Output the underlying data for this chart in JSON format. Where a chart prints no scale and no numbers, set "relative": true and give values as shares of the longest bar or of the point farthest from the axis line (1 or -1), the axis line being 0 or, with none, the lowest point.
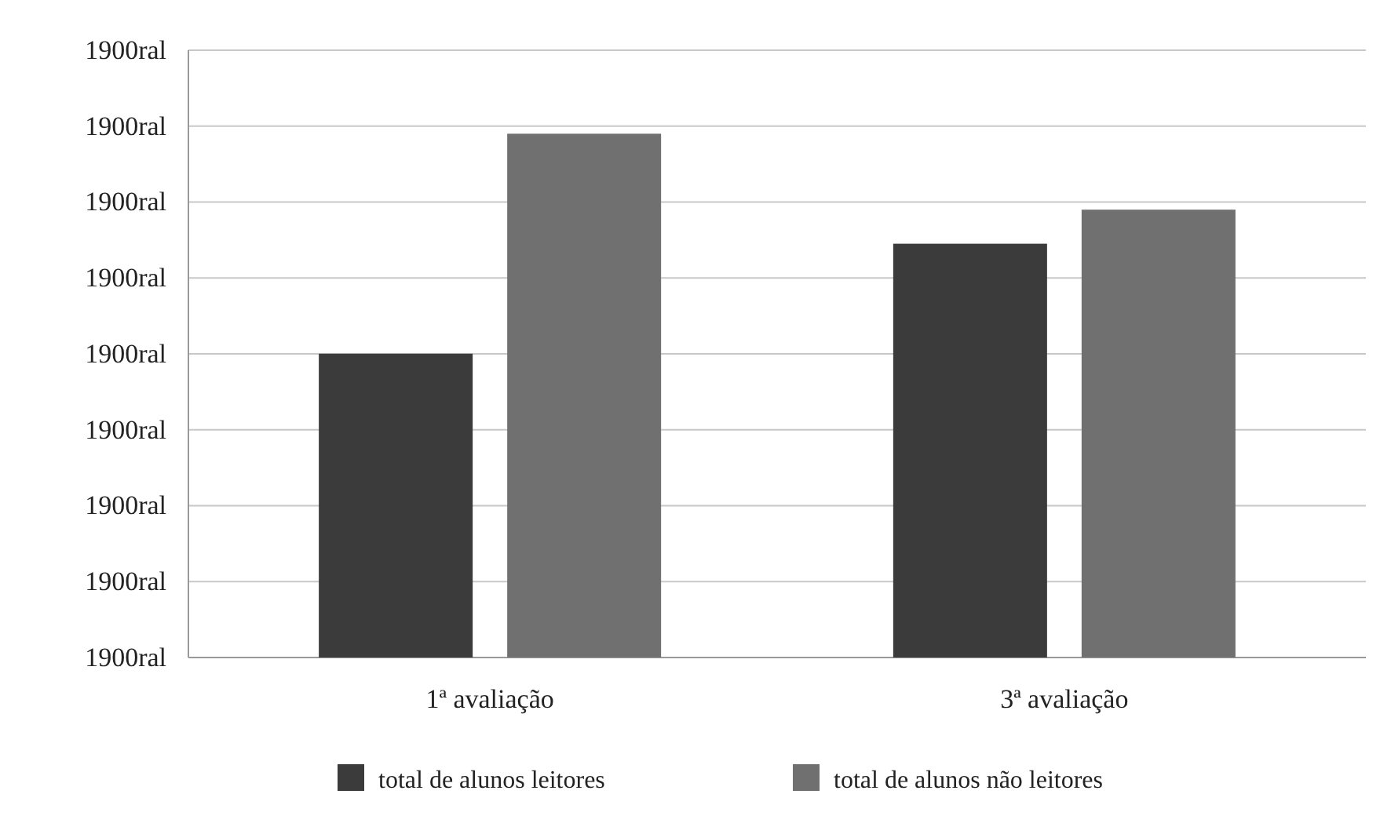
{
  "chart_data": {
    "type": "bar",
    "categories": [
      "1ª avaliação",
      "3ª avaliação"
    ],
    "series": [
      {
        "name": "total de alunos leitores",
        "color": "#3b3b3b",
        "values": [
          0.58,
          0.79
        ]
      },
      {
        "name": "total de alunos não leitores",
        "color": "#707070",
        "values": [
          1,
          0.855
        ]
      }
    ],
    "relative": true,
    "annotations": [
      "1900ral",
      "1900ral",
      "1900ral",
      "1900ral",
      "1900ral",
      "1900ral",
      "1900ral",
      "1900ral",
      "1900ral"
    ],
    "grid": true,
    "legend": "bottom"
  }
}
